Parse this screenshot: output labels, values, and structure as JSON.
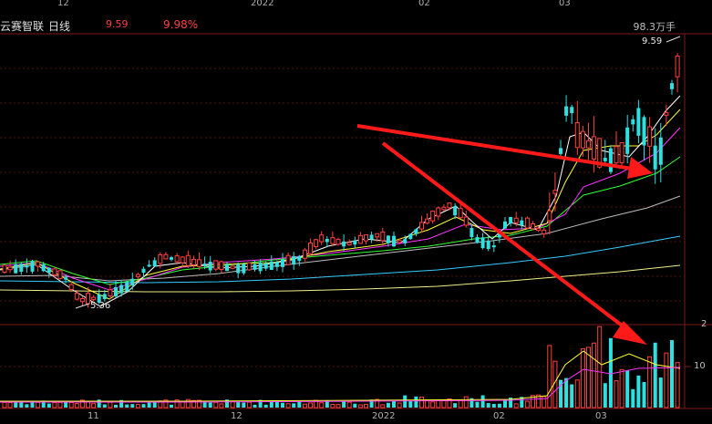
{
  "top_dates": [
    "12",
    "2022",
    "02",
    "03"
  ],
  "header": {
    "stock_name": "云赛智联",
    "period": "日线",
    "price": "9.59",
    "change_pct": "9.98%"
  },
  "volume_label": "98.3万手",
  "high_price_label": "9.59",
  "low_price_label": "5.36",
  "right_axis_labels": [
    "2",
    "10"
  ],
  "bottom_dates": [
    "11",
    "12",
    "2022",
    "02",
    "03"
  ],
  "colors": {
    "up": "#ff4040",
    "down": "#2fe0e0",
    "ma5": "#ffffff",
    "ma10": "#ffff33",
    "ma20": "#ff33ff",
    "ma30": "#33ff33",
    "ma60": "#bbbbbb",
    "ma120": "#33ccff",
    "ma250": "#eeee88",
    "arrow": "#ff1a1a"
  }
}
